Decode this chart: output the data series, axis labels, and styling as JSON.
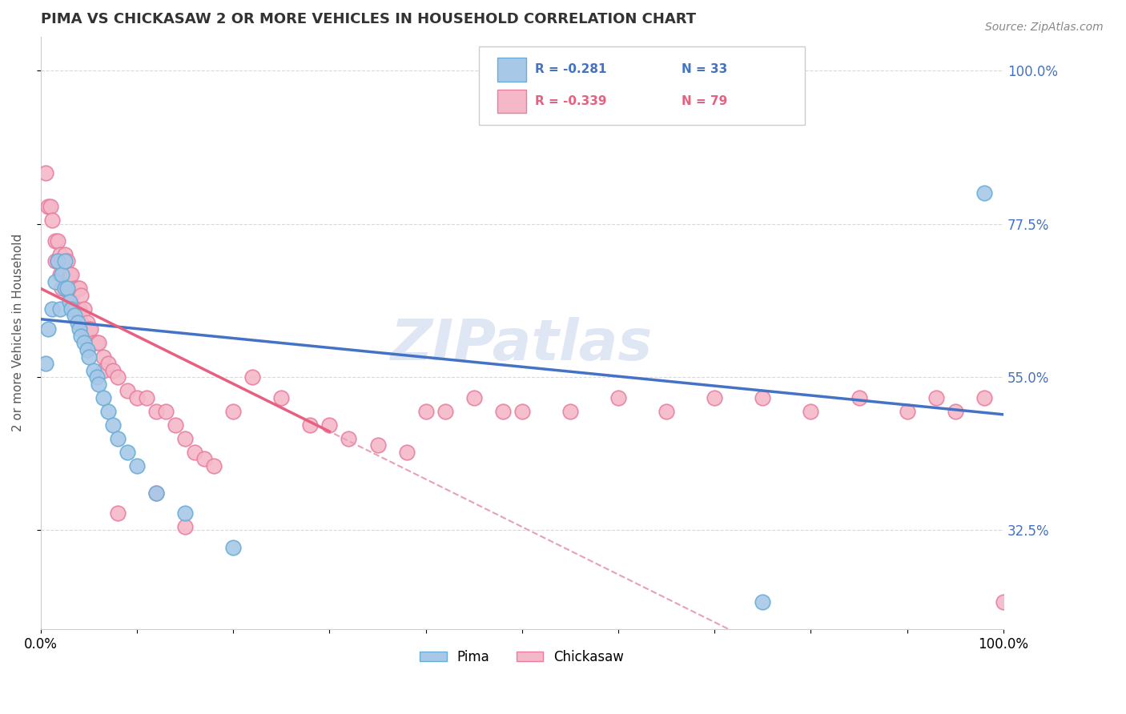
{
  "title": "PIMA VS CHICKASAW 2 OR MORE VEHICLES IN HOUSEHOLD CORRELATION CHART",
  "source": "Source: ZipAtlas.com",
  "ylabel": "2 or more Vehicles in Household",
  "ytick_labels": [
    "32.5%",
    "55.0%",
    "77.5%",
    "100.0%"
  ],
  "ytick_values": [
    0.325,
    0.55,
    0.775,
    1.0
  ],
  "xmin": 0.0,
  "xmax": 1.0,
  "ymin": 0.18,
  "ymax": 1.05,
  "watermark": "ZIPatlas",
  "pima_color": "#a8c8e8",
  "pima_edge_color": "#6aaed6",
  "chickasaw_color": "#f4b8c8",
  "chickasaw_edge_color": "#e87fa0",
  "trend_pima_color": "#4472c4",
  "trend_chickasaw_color": "#e86080",
  "dashed_line_color": "#e8a0b8",
  "pima_scatter_x": [
    0.005,
    0.008,
    0.012,
    0.015,
    0.018,
    0.02,
    0.022,
    0.025,
    0.025,
    0.028,
    0.03,
    0.032,
    0.035,
    0.038,
    0.04,
    0.042,
    0.045,
    0.048,
    0.05,
    0.055,
    0.058,
    0.06,
    0.065,
    0.07,
    0.075,
    0.08,
    0.09,
    0.1,
    0.12,
    0.15,
    0.2,
    0.75,
    0.98
  ],
  "pima_scatter_y": [
    0.57,
    0.62,
    0.65,
    0.69,
    0.72,
    0.65,
    0.7,
    0.68,
    0.72,
    0.68,
    0.66,
    0.65,
    0.64,
    0.63,
    0.62,
    0.61,
    0.6,
    0.59,
    0.58,
    0.56,
    0.55,
    0.54,
    0.52,
    0.5,
    0.48,
    0.46,
    0.44,
    0.42,
    0.38,
    0.35,
    0.3,
    0.22,
    0.82
  ],
  "chickasaw_scatter_x": [
    0.005,
    0.008,
    0.01,
    0.012,
    0.015,
    0.015,
    0.018,
    0.018,
    0.02,
    0.02,
    0.022,
    0.022,
    0.025,
    0.025,
    0.028,
    0.028,
    0.03,
    0.03,
    0.032,
    0.032,
    0.035,
    0.035,
    0.038,
    0.038,
    0.04,
    0.04,
    0.042,
    0.042,
    0.045,
    0.045,
    0.048,
    0.05,
    0.052,
    0.055,
    0.058,
    0.06,
    0.065,
    0.065,
    0.07,
    0.075,
    0.08,
    0.09,
    0.1,
    0.11,
    0.12,
    0.13,
    0.14,
    0.15,
    0.16,
    0.17,
    0.18,
    0.2,
    0.22,
    0.25,
    0.28,
    0.3,
    0.32,
    0.35,
    0.38,
    0.4,
    0.42,
    0.45,
    0.48,
    0.5,
    0.55,
    0.6,
    0.65,
    0.7,
    0.75,
    0.8,
    0.85,
    0.9,
    0.93,
    0.95,
    0.98,
    1.0,
    0.08,
    0.12,
    0.15
  ],
  "chickasaw_scatter_y": [
    0.85,
    0.8,
    0.8,
    0.78,
    0.75,
    0.72,
    0.75,
    0.72,
    0.73,
    0.7,
    0.72,
    0.68,
    0.73,
    0.7,
    0.72,
    0.68,
    0.7,
    0.67,
    0.7,
    0.67,
    0.68,
    0.65,
    0.68,
    0.65,
    0.68,
    0.65,
    0.67,
    0.63,
    0.65,
    0.62,
    0.63,
    0.62,
    0.62,
    0.6,
    0.6,
    0.6,
    0.58,
    0.56,
    0.57,
    0.56,
    0.55,
    0.53,
    0.52,
    0.52,
    0.5,
    0.5,
    0.48,
    0.46,
    0.44,
    0.43,
    0.42,
    0.5,
    0.55,
    0.52,
    0.48,
    0.48,
    0.46,
    0.45,
    0.44,
    0.5,
    0.5,
    0.52,
    0.5,
    0.5,
    0.5,
    0.52,
    0.5,
    0.52,
    0.52,
    0.5,
    0.52,
    0.5,
    0.52,
    0.5,
    0.52,
    0.22,
    0.35,
    0.38,
    0.33
  ]
}
